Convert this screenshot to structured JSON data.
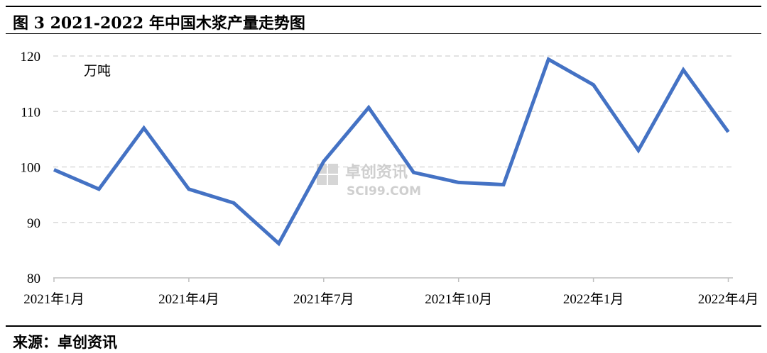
{
  "header": {
    "title": "图 3  2021-2022 年中国木浆产量走势图"
  },
  "footer": {
    "source": "来源：卓创资讯"
  },
  "watermark": {
    "brand": "卓创资讯",
    "site": "SCI99.COM"
  },
  "colors": {
    "line": "#4472C4",
    "grid": "#d9d9d9",
    "axis": "#bfbfbf",
    "text": "#000000"
  },
  "chart_data": {
    "type": "line",
    "unit_label": "万吨",
    "ylim": [
      80,
      120
    ],
    "yticks": [
      80,
      90,
      100,
      110,
      120
    ],
    "grid": true,
    "x_tick_labels": [
      "2021年1月",
      "2021年4月",
      "2021年7月",
      "2021年10月",
      "2022年1月",
      "2022年4月"
    ],
    "x_tick_label_months": [
      "2021-01",
      "2021-04",
      "2021-07",
      "2021-10",
      "2022-01",
      "2022-04"
    ],
    "x": [
      "2021-01",
      "2021-02",
      "2021-03",
      "2021-04",
      "2021-05",
      "2021-06",
      "2021-07",
      "2021-08",
      "2021-09",
      "2021-10",
      "2021-11",
      "2021-12",
      "2022-01",
      "2022-02",
      "2022-03",
      "2022-04"
    ],
    "series": [
      {
        "values": [
          99.5,
          96.0,
          107.0,
          96.0,
          93.5,
          86.2,
          101.0,
          110.7,
          99.0,
          97.2,
          96.8,
          119.4,
          114.8,
          103.0,
          117.5,
          106.3
        ]
      }
    ]
  }
}
